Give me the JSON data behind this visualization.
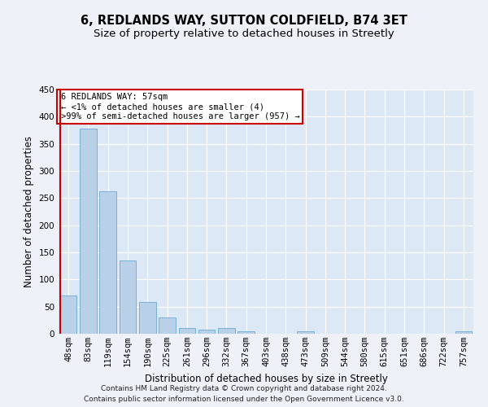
{
  "title": "6, REDLANDS WAY, SUTTON COLDFIELD, B74 3ET",
  "subtitle": "Size of property relative to detached houses in Streetly",
  "xlabel": "Distribution of detached houses by size in Streetly",
  "ylabel": "Number of detached properties",
  "footer_line1": "Contains HM Land Registry data © Crown copyright and database right 2024.",
  "footer_line2": "Contains public sector information licensed under the Open Government Licence v3.0.",
  "categories": [
    "48sqm",
    "83sqm",
    "119sqm",
    "154sqm",
    "190sqm",
    "225sqm",
    "261sqm",
    "296sqm",
    "332sqm",
    "367sqm",
    "403sqm",
    "438sqm",
    "473sqm",
    "509sqm",
    "544sqm",
    "580sqm",
    "615sqm",
    "651sqm",
    "686sqm",
    "722sqm",
    "757sqm"
  ],
  "values": [
    71,
    378,
    262,
    135,
    59,
    30,
    10,
    8,
    10,
    5,
    0,
    0,
    4,
    0,
    0,
    0,
    0,
    0,
    0,
    0,
    4
  ],
  "bar_color": "#b8d0e8",
  "bar_edge_color": "#6aaad4",
  "highlight_bar_color": "#cc0000",
  "annotation_text": "6 REDLANDS WAY: 57sqm\n← <1% of detached houses are smaller (4)\n>99% of semi-detached houses are larger (957) →",
  "annotation_box_color": "#ffffff",
  "annotation_box_edge_color": "#cc0000",
  "ylim": [
    0,
    450
  ],
  "yticks": [
    0,
    50,
    100,
    150,
    200,
    250,
    300,
    350,
    400,
    450
  ],
  "background_color": "#eef2f8",
  "plot_background_color": "#dce8f5",
  "grid_color": "#ffffff",
  "title_fontsize": 10.5,
  "subtitle_fontsize": 9.5,
  "xlabel_fontsize": 8.5,
  "ylabel_fontsize": 8.5,
  "tick_fontsize": 7.5,
  "footer_fontsize": 6.5,
  "annotation_fontsize": 7.5
}
